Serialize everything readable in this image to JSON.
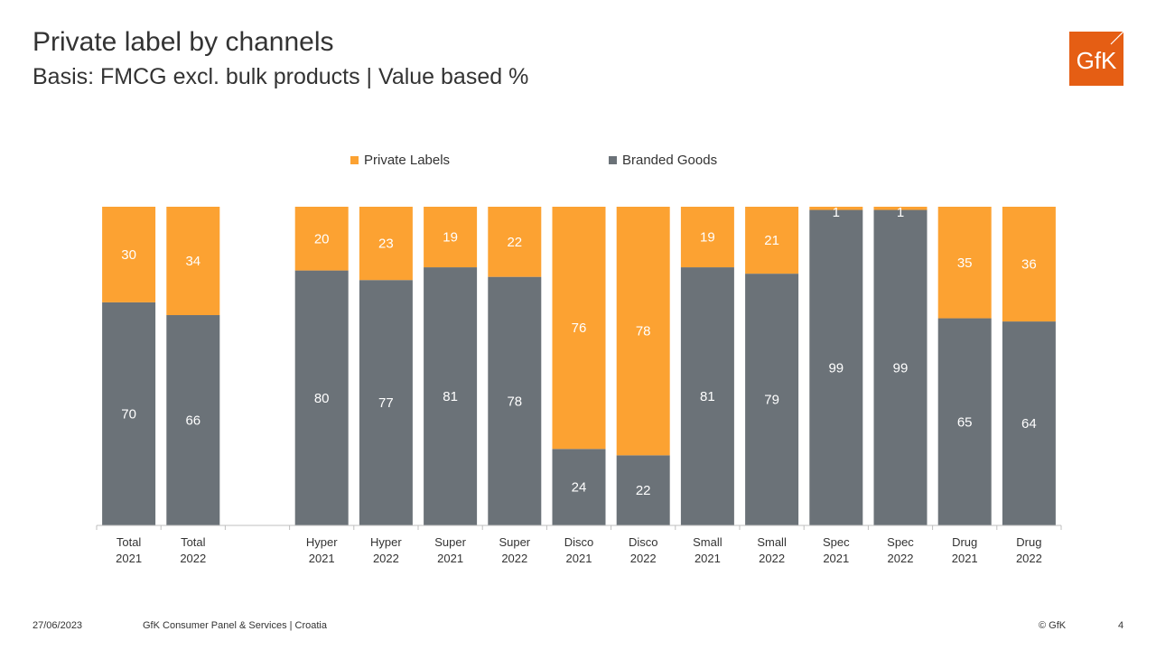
{
  "header": {
    "title": "Private label by channels",
    "subtitle": "Basis: FMCG excl. bulk products | Value based %"
  },
  "logo": {
    "text": "GfK",
    "color": "#e55e14"
  },
  "footer": {
    "date": "27/06/2023",
    "source": "GfK Consumer Panel & Services | Croatia",
    "copyright": "© GfK",
    "page_number": "4"
  },
  "chart_data": {
    "type": "bar",
    "stacked": true,
    "percent_scale": true,
    "legend_position": "top",
    "categories": [
      [
        "Total",
        "2021"
      ],
      [
        "Total",
        "2022"
      ],
      [
        "",
        ""
      ],
      [
        "Hyper",
        "2021"
      ],
      [
        "Hyper",
        "2022"
      ],
      [
        "Super",
        "2021"
      ],
      [
        "Super",
        "2022"
      ],
      [
        "Disco",
        "2021"
      ],
      [
        "Disco",
        "2022"
      ],
      [
        "Small",
        "2021"
      ],
      [
        "Small",
        "2022"
      ],
      [
        "Spec",
        "2021"
      ],
      [
        "Spec",
        "2022"
      ],
      [
        "Drug",
        "2021"
      ],
      [
        "Drug",
        "2022"
      ]
    ],
    "series": [
      {
        "name": "Branded Goods",
        "color": "#6b7278",
        "label_color": "#ffffff",
        "values": [
          70,
          66,
          null,
          80,
          77,
          81,
          78,
          24,
          22,
          81,
          79,
          99,
          99,
          65,
          64
        ]
      },
      {
        "name": "Private Labels",
        "color": "#fca232",
        "label_color": "#ffffff",
        "values": [
          30,
          34,
          null,
          20,
          23,
          19,
          22,
          76,
          78,
          19,
          21,
          1,
          1,
          35,
          36
        ]
      }
    ],
    "legend_order": [
      "Private Labels",
      "Branded Goods"
    ],
    "ylim": [
      0,
      100
    ],
    "grid": false
  }
}
